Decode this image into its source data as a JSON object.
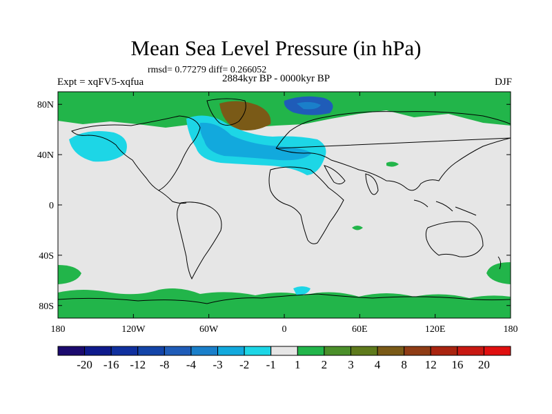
{
  "title": "Mean Sea Level Pressure (in hPa)",
  "stats": "rmsd= 0.77279 diff= 0.266052",
  "period": "2884kyr BP - 0000kyr BP",
  "experiment": "Expt = xqFV5-xqfua",
  "season": "DJF",
  "map": {
    "lon_range": [
      -180,
      180
    ],
    "lat_range": [
      -90,
      90
    ],
    "lat_ticks": [
      {
        "value": 80,
        "label": "80N"
      },
      {
        "value": 40,
        "label": "40N"
      },
      {
        "value": 0,
        "label": "0"
      },
      {
        "value": -40,
        "label": "40S"
      },
      {
        "value": -80,
        "label": "80S"
      }
    ],
    "lon_ticks": [
      {
        "value": -180,
        "label": "180"
      },
      {
        "value": -120,
        "label": "120W"
      },
      {
        "value": -60,
        "label": "60W"
      },
      {
        "value": 0,
        "label": "0"
      },
      {
        "value": 60,
        "label": "60E"
      },
      {
        "value": 120,
        "label": "120E"
      },
      {
        "value": 180,
        "label": "180"
      }
    ]
  },
  "colorbar": {
    "levels": [
      "-20",
      "-16",
      "-12",
      "-8",
      "-4",
      "-3",
      "-2",
      "-1",
      "1",
      "2",
      "3",
      "4",
      "8",
      "12",
      "16",
      "20"
    ],
    "colors": [
      "#1b0a6e",
      "#0f1a8c",
      "#10309e",
      "#1344a8",
      "#1f5cb8",
      "#1a7fca",
      "#12a9dd",
      "#1dd6e6",
      "#e6e6e6",
      "#22b54a",
      "#4a8f2a",
      "#5e7a1c",
      "#7a5a17",
      "#8f3c15",
      "#a92410",
      "#c81812",
      "#e01010"
    ]
  },
  "colors": {
    "land_outline": "#000000",
    "background_field": "#e6e6e6",
    "positive_small": "#22b54a",
    "negative_small": "#1dd6e6",
    "negative_medium": "#12a9dd",
    "negative_large": "#1f5cb8",
    "positive_large": "#7a5a17"
  }
}
